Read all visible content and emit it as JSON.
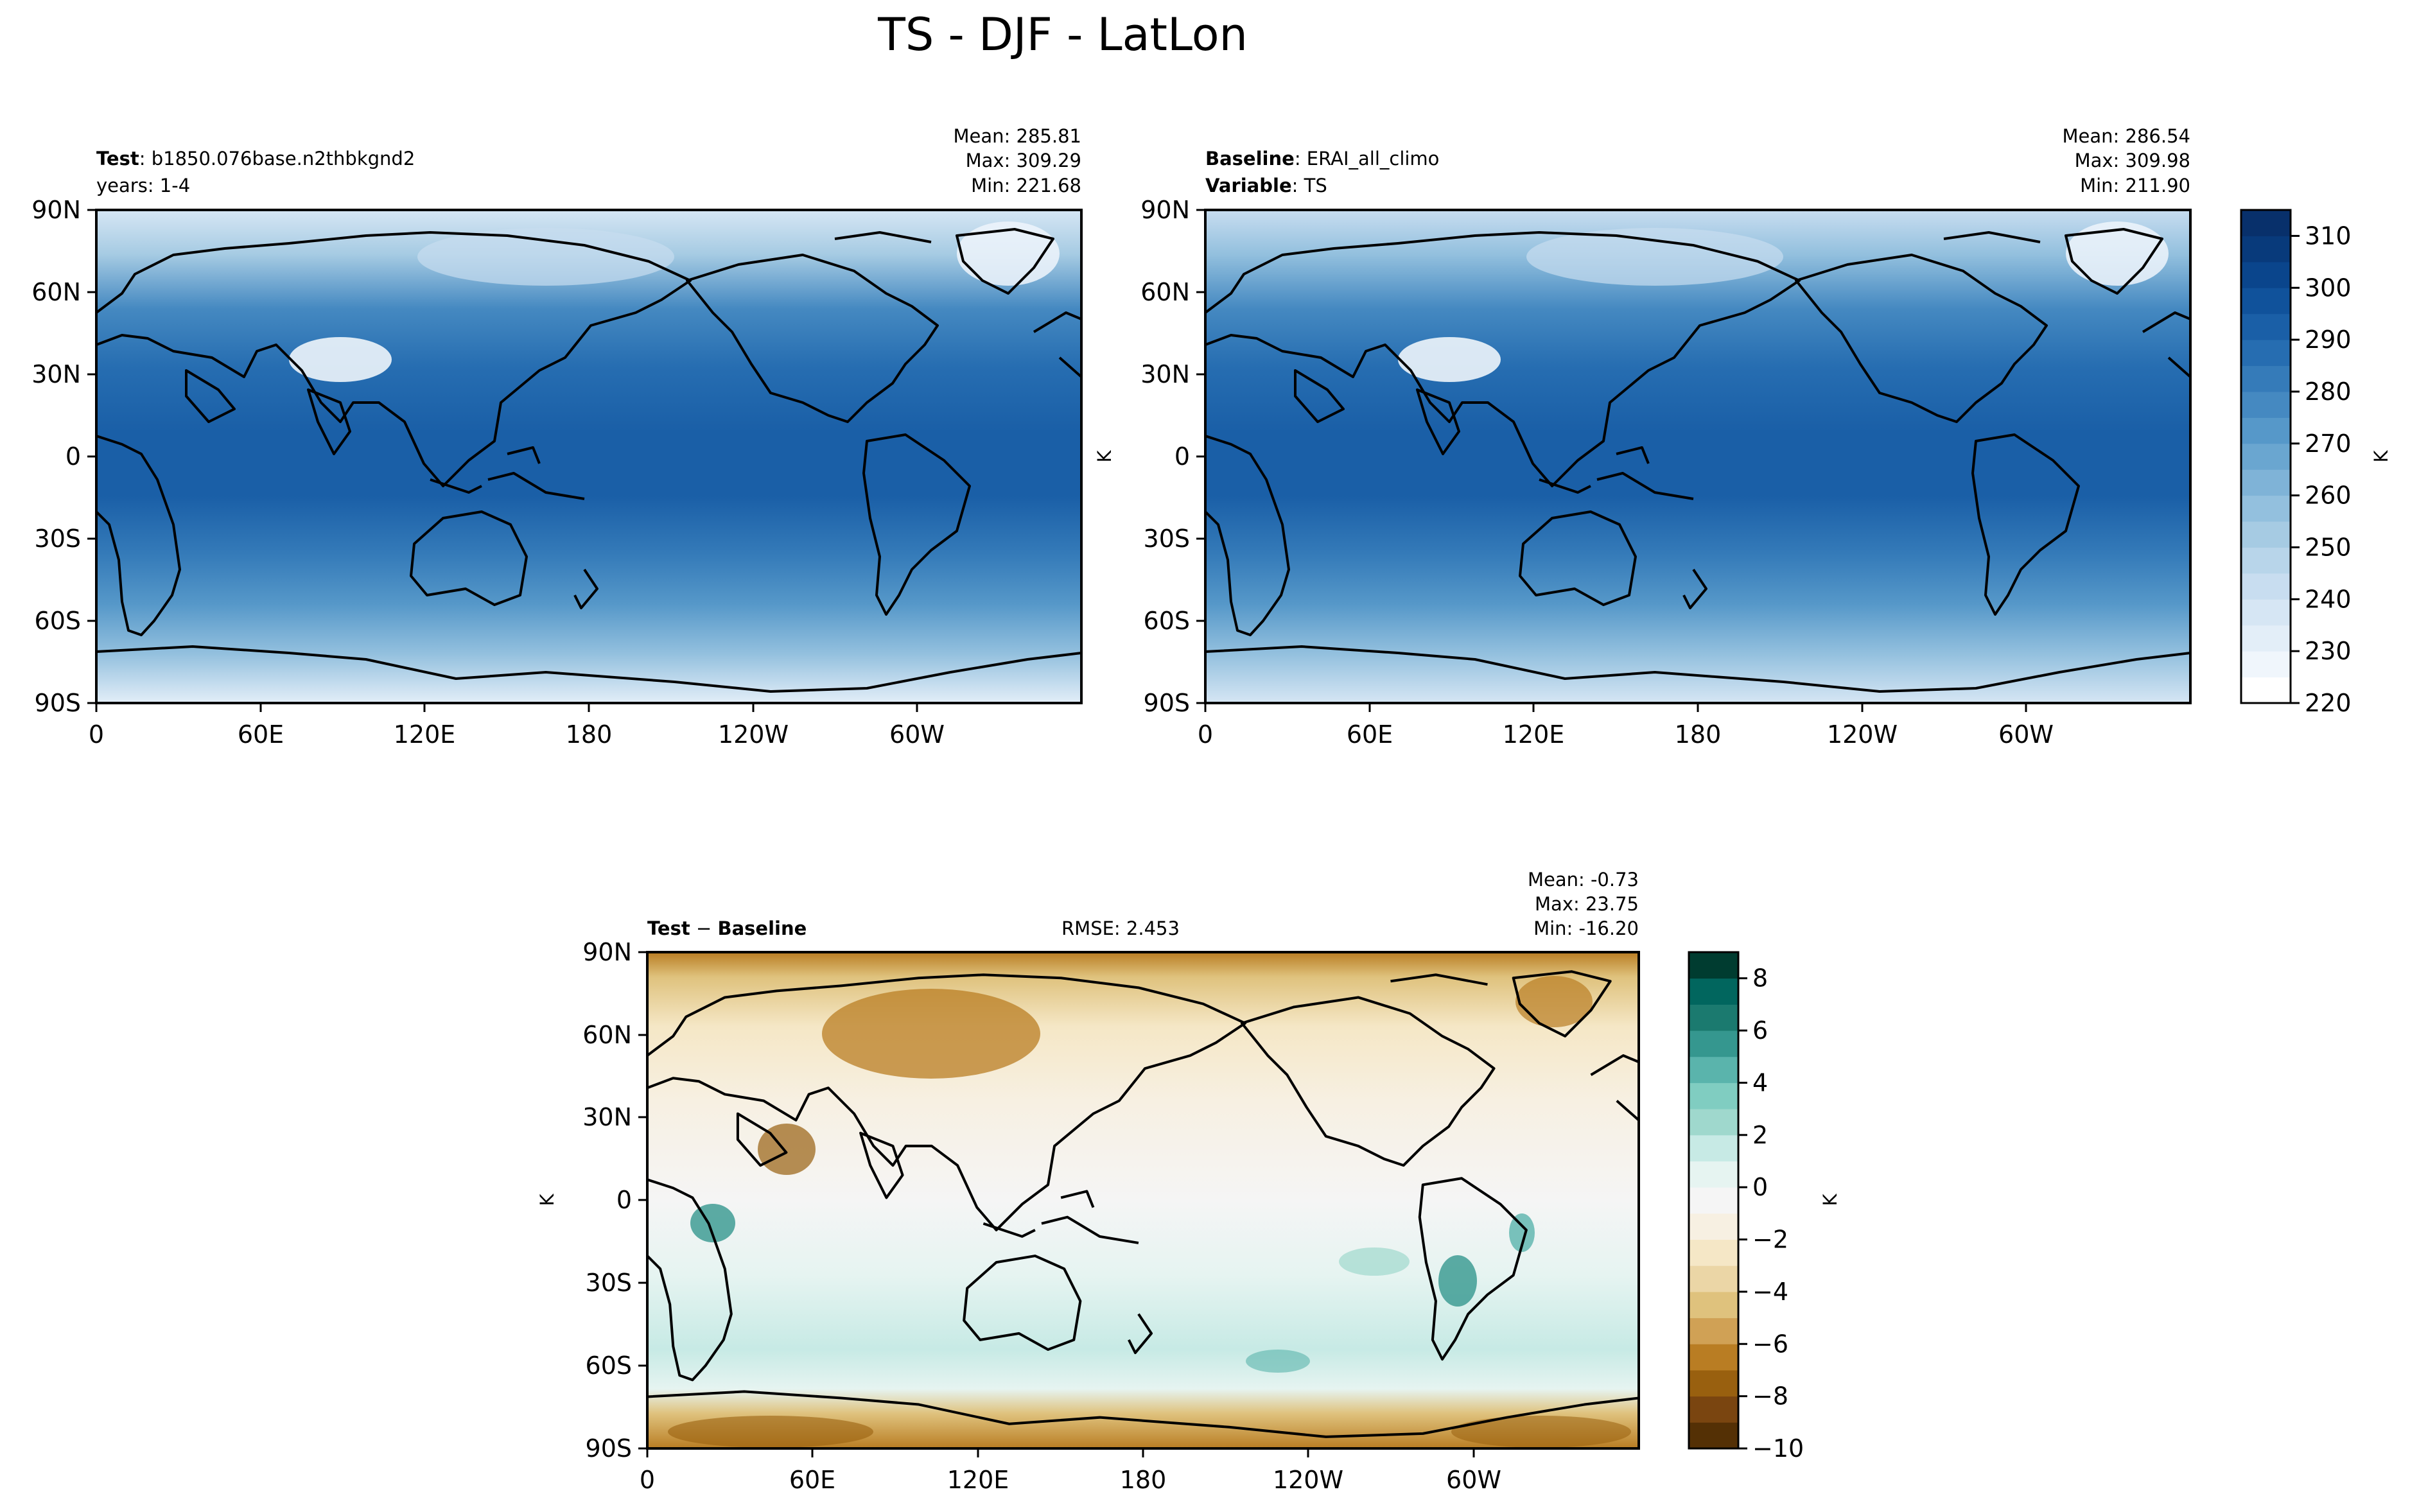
{
  "figure": {
    "title": "TS - DJF - LatLon"
  },
  "colors": {
    "seq_blue": [
      "#ffffff",
      "#f0f6fc",
      "#e3eef8",
      "#d6e6f4",
      "#c8ddf0",
      "#b8d5ea",
      "#a6cbe3",
      "#93c0de",
      "#7fb3d7",
      "#6aa6d0",
      "#5698c9",
      "#4589c1",
      "#357bb9",
      "#266db1",
      "#1a5fa7",
      "#10529b",
      "#0a458c",
      "#083a7b",
      "#08306b"
    ],
    "div_brbg": [
      "#543005",
      "#7a4510",
      "#99600f",
      "#b97d23",
      "#d0a155",
      "#dfc27d",
      "#ebd6a6",
      "#f5e7c6",
      "#f7f0e2",
      "#f5f5f5",
      "#e6f4f1",
      "#c7eae5",
      "#9fd8cd",
      "#80cdc1",
      "#5ab4ac",
      "#35978f",
      "#1b7a6f",
      "#01665e",
      "#003c30"
    ],
    "land": "#000000"
  },
  "panels": [
    {
      "id": "test",
      "header_left_1_bold": "Test",
      "header_left_1": ": b1850.076base.n2thbkgnd2",
      "header_left_2": "years: 1-4",
      "stats": [
        "Mean: 285.81",
        "Max: 309.29",
        "Min: 221.68"
      ],
      "ylabel": ""
    },
    {
      "id": "baseline",
      "header_left_1_bold": "Baseline",
      "header_left_1": ": ERAI_all_climo",
      "header_left_2_bold": "Variable",
      "header_left_2": ": TS",
      "stats": [
        "Mean: 286.54",
        "Max: 309.98",
        "Min: 211.90"
      ],
      "ylabel": "K"
    },
    {
      "id": "diff",
      "header_left_1_bold": "Test",
      "header_left_1_op": " − ",
      "header_left_1_bold_2": "Baseline",
      "center_text": "RMSE: 2.453",
      "stats": [
        "Mean: -0.73",
        "Max: 23.75",
        "Min: -16.20"
      ],
      "ylabel": "K"
    }
  ],
  "chart_data": [
    {
      "type": "heatmap",
      "title": "Test : b1850.076base.n2thbkgnd2",
      "subtitle": "years: 1-4",
      "x_ticks": [
        "0",
        "60E",
        "120E",
        "180",
        "120W",
        "60W"
      ],
      "y_ticks": [
        "90N",
        "60N",
        "30N",
        "0",
        "30S",
        "60S",
        "90S"
      ],
      "xlim": [
        0,
        360
      ],
      "ylim": [
        -90,
        90
      ],
      "mean": 285.81,
      "max": 309.29,
      "min": 221.68,
      "zonal_mean_profile": {
        "lat": [
          90,
          75,
          60,
          45,
          30,
          15,
          0,
          -15,
          -30,
          -45,
          -60,
          -75,
          -90
        ],
        "value": [
          245,
          250,
          262,
          276,
          288,
          298,
          300,
          299,
          292,
          280,
          268,
          245,
          235
        ]
      }
    },
    {
      "type": "heatmap",
      "title": "Baseline : ERAI_all_climo",
      "subtitle": "Variable : TS",
      "x_ticks": [
        "0",
        "60E",
        "120E",
        "180",
        "120W",
        "60W"
      ],
      "y_ticks": [
        "90N",
        "60N",
        "30N",
        "0",
        "30S",
        "60S",
        "90S"
      ],
      "xlim": [
        0,
        360
      ],
      "ylim": [
        -90,
        90
      ],
      "mean": 286.54,
      "max": 309.98,
      "min": 211.9,
      "zonal_mean_profile": {
        "lat": [
          90,
          75,
          60,
          45,
          30,
          15,
          0,
          -15,
          -30,
          -45,
          -60,
          -75,
          -90
        ],
        "value": [
          244,
          250,
          263,
          277,
          289,
          298,
          300,
          299,
          292,
          281,
          269,
          246,
          236
        ]
      }
    },
    {
      "type": "heatmap",
      "title": "Test − Baseline",
      "annotation": "RMSE: 2.453",
      "x_ticks": [
        "0",
        "60E",
        "120E",
        "180",
        "120W",
        "60W"
      ],
      "y_ticks": [
        "90N",
        "60N",
        "30N",
        "0",
        "30S",
        "60S",
        "90S"
      ],
      "xlim": [
        0,
        360
      ],
      "ylim": [
        -90,
        90
      ],
      "mean": -0.73,
      "max": 23.75,
      "min": -16.2,
      "zonal_mean_profile": {
        "lat": [
          90,
          75,
          60,
          45,
          30,
          15,
          0,
          -15,
          -30,
          -45,
          -60,
          -75,
          -90
        ],
        "value": [
          -3,
          -3,
          -2,
          -1,
          0,
          0,
          0,
          0,
          1,
          0,
          1,
          -4,
          -3
        ]
      }
    }
  ],
  "colorbars": [
    {
      "id": "abs",
      "label": "K",
      "ticks": [
        "220",
        "230",
        "240",
        "250",
        "260",
        "270",
        "280",
        "290",
        "300",
        "310"
      ],
      "range": [
        220,
        315
      ]
    },
    {
      "id": "diff",
      "label": "K",
      "ticks": [
        "−10",
        "−8",
        "−6",
        "−4",
        "−2",
        "0",
        "2",
        "4",
        "6",
        "8"
      ],
      "range": [
        -10,
        9
      ]
    }
  ]
}
